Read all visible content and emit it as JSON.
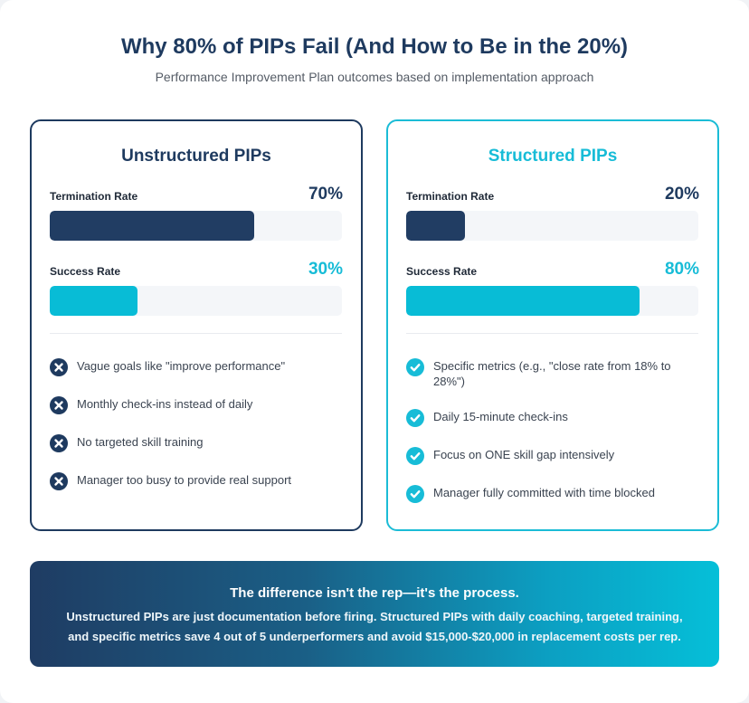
{
  "header": {
    "title": "Why 80% of PIPs Fail (And How to Be in the 20%)",
    "subtitle": "Performance Improvement Plan outcomes based on implementation approach"
  },
  "colors": {
    "navy": "#1e3a5f",
    "cyan": "#17bcd7"
  },
  "cards": {
    "unstructured": {
      "title": "Unstructured PIPs",
      "termination_label": "Termination Rate",
      "termination_value": "70%",
      "termination_fill": 0.7,
      "success_label": "Success Rate",
      "success_value": "30%",
      "success_fill": 0.3,
      "items_icon": "x-circle-icon",
      "items": [
        "Vague goals like \"improve performance\"",
        "Monthly check-ins instead of daily",
        "No targeted skill training",
        "Manager too busy to provide real support"
      ]
    },
    "structured": {
      "title": "Structured PIPs",
      "termination_label": "Termination Rate",
      "termination_value": "20%",
      "termination_fill": 0.2,
      "success_label": "Success Rate",
      "success_value": "80%",
      "success_fill": 0.8,
      "items_icon": "check-circle-icon",
      "items": [
        "Specific metrics (e.g., \"close rate from 18% to 28%\")",
        "Daily 15-minute check-ins",
        "Focus on ONE skill gap intensively",
        "Manager fully committed with time blocked"
      ]
    }
  },
  "banner": {
    "title": "The difference isn't the rep—it's the process.",
    "text": "Unstructured PIPs are just documentation before firing. Structured PIPs with daily coaching, targeted training, and specific metrics save 4 out of 5 underperformers and avoid $15,000-$20,000 in replacement costs per rep."
  }
}
